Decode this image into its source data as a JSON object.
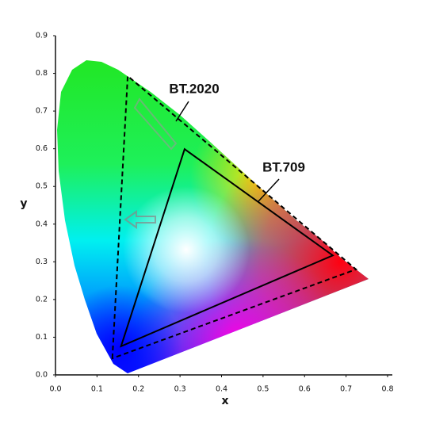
{
  "chart_data": {
    "type": "line",
    "xlabel": "x",
    "ylabel": "y",
    "xlim": [
      0,
      0.8
    ],
    "ylim": [
      0,
      0.9
    ],
    "xticks": [
      {
        "value": 0,
        "label": "0.0"
      },
      0.1,
      0.2,
      0.3,
      0.4,
      0.5,
      0.6,
      0.7,
      0.8
    ],
    "yticks": [
      {
        "value": 0,
        "label": "0.0"
      },
      0.1,
      0.2,
      0.3,
      0.4,
      0.5,
      0.6,
      0.7,
      0.8,
      0.9
    ],
    "series": [
      {
        "name": "BT.2020",
        "color": "#000000",
        "dashed": true,
        "closed": true,
        "x": [
          0.137,
          0.174,
          0.724
        ],
        "values": [
          0.044,
          0.793,
          0.28
        ]
      },
      {
        "name": "BT.709",
        "color": "#000000",
        "dashed": false,
        "closed": true,
        "x": [
          0.158,
          0.311,
          0.668
        ],
        "values": [
          0.076,
          0.599,
          0.317
        ]
      }
    ]
  }
}
